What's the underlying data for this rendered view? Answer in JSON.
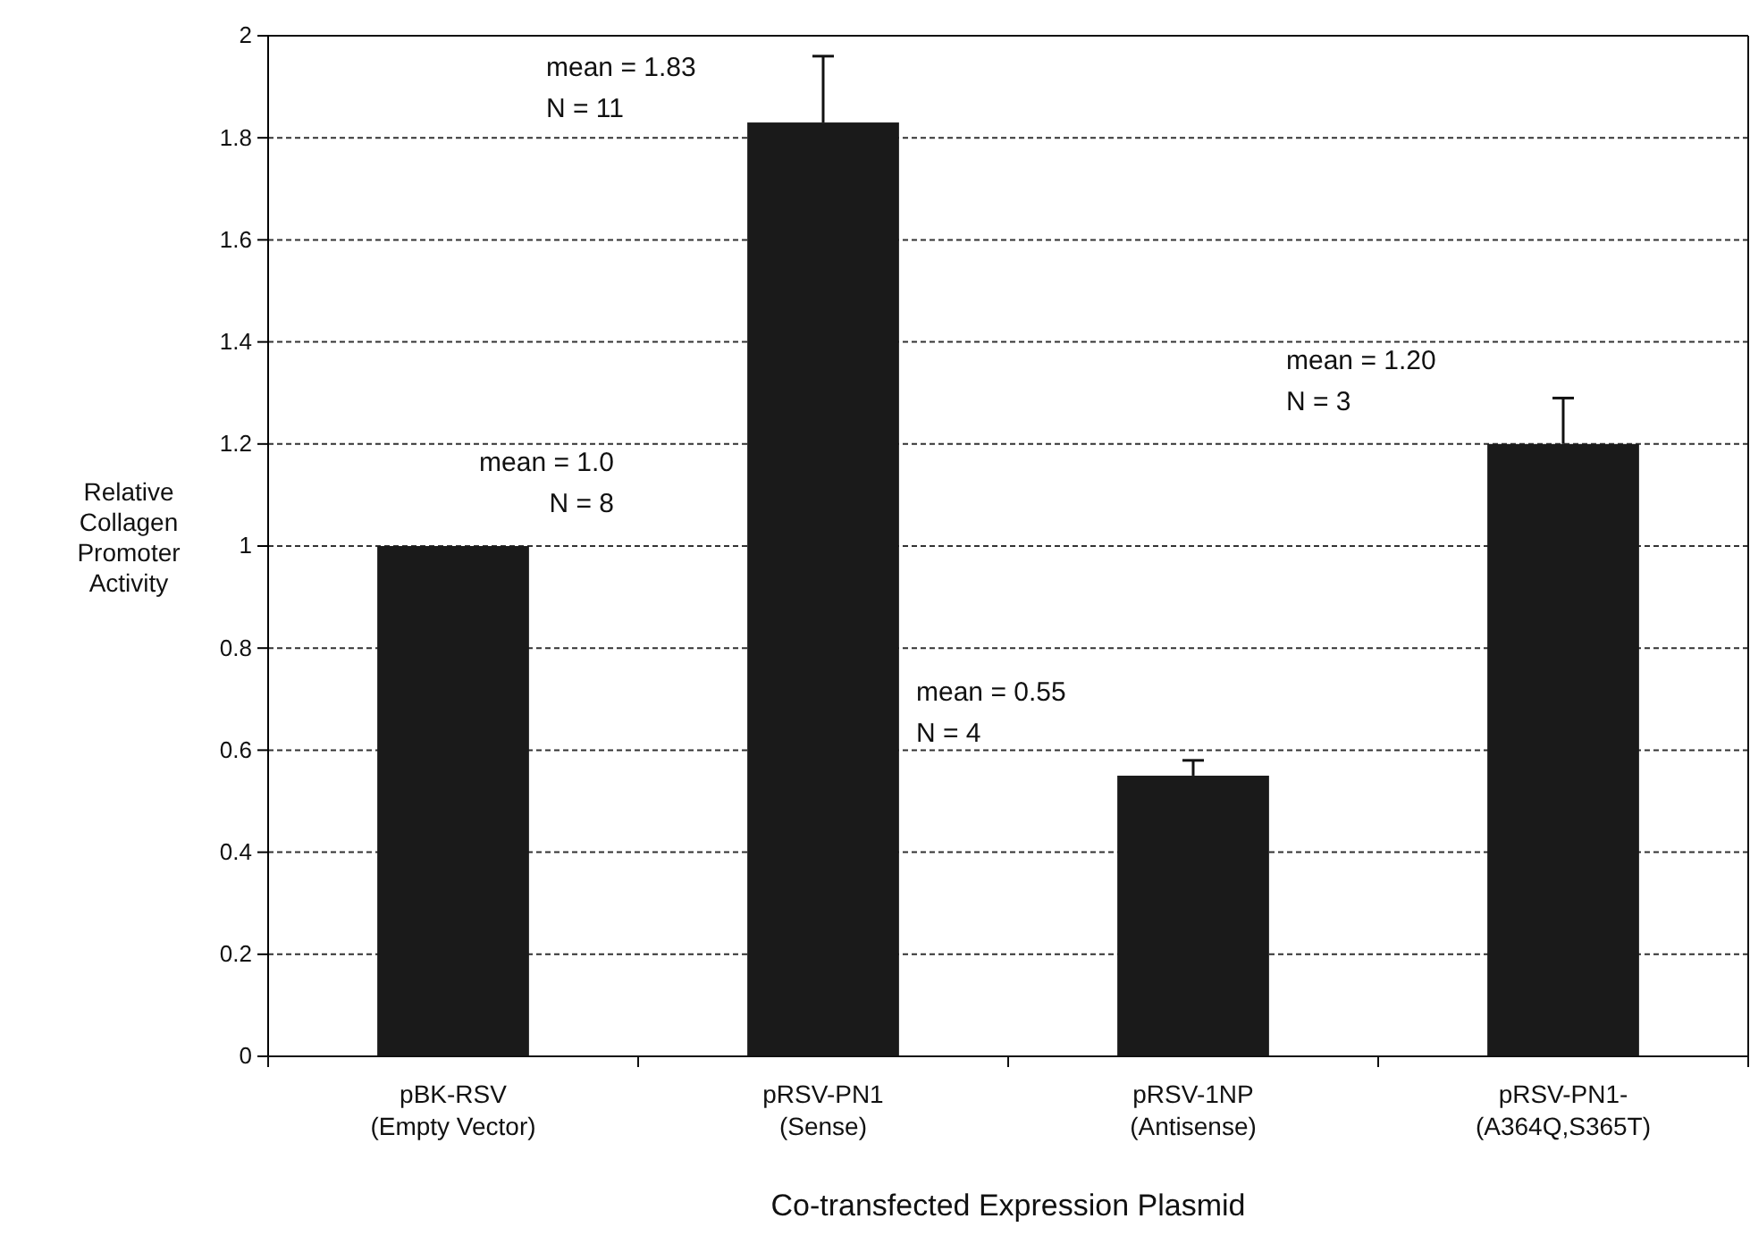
{
  "chart_data": {
    "type": "bar",
    "xlabel": "Co-transfected Expression Plasmid",
    "ylabel": "Relative Collagen Promoter Activity",
    "categories": [
      "pBK-RSV\n(Empty Vector)",
      "pRSV-PN1\n(Sense)",
      "pRSV-1NP\n(Antisense)",
      "pRSV-PN1-\n(A364Q,S365T)"
    ],
    "values": [
      1.0,
      1.83,
      0.55,
      1.2
    ],
    "color": "#1a1a1a",
    "errors": [
      null,
      [
        1.83,
        1.96
      ],
      [
        0.55,
        0.58
      ],
      [
        1.2,
        1.29
      ]
    ],
    "ylim": [
      0,
      2
    ],
    "yticks": [
      0,
      0.2,
      0.4,
      0.6,
      0.8,
      1,
      1.2,
      1.4,
      1.6,
      1.8,
      2
    ],
    "grid": "y",
    "annotations": [
      "mean = 1.0\nN = 8",
      "mean = 1.83\nN = 11",
      "mean = 0.55\nN = 4",
      "mean = 1.20\nN = 3"
    ]
  }
}
